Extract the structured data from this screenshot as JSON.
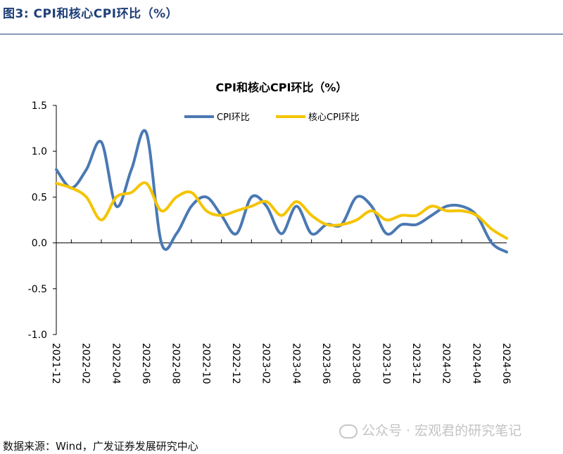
{
  "figure": {
    "label": "图3:  CPI和核心CPI环比（%）"
  },
  "footer": {
    "source": "数据来源：Wind，广发证券发展研究中心"
  },
  "watermark": {
    "text": "公众号 · 宏观君的研究笔记"
  },
  "chart_data": {
    "type": "line",
    "title": "CPI和核心CPI环比（%）",
    "xlabel": "",
    "ylabel": "",
    "ylim": [
      -1.0,
      1.5
    ],
    "yticks": [
      -1.0,
      -0.5,
      0.0,
      0.5,
      1.0,
      1.5
    ],
    "ytick_labels": [
      "-1.0",
      "-0.5",
      "0.0",
      "0.5",
      "1.0",
      "1.5"
    ],
    "x_tick_labels": [
      "2021-12",
      "2022-02",
      "2022-04",
      "2022-06",
      "2022-08",
      "2022-10",
      "2022-12",
      "2023-02",
      "2023-04",
      "2023-06",
      "2023-08",
      "2023-10",
      "2023-12",
      "2024-02",
      "2024-04",
      "2024-06"
    ],
    "categories": [
      "2021-12",
      "2022-01",
      "2022-02",
      "2022-03",
      "2022-04",
      "2022-05",
      "2022-06",
      "2022-07",
      "2022-08",
      "2022-09",
      "2022-10",
      "2022-11",
      "2022-12",
      "2023-01",
      "2023-02",
      "2023-03",
      "2023-04",
      "2023-05",
      "2023-06",
      "2023-07",
      "2023-08",
      "2023-09",
      "2023-10",
      "2023-11",
      "2023-12",
      "2024-01",
      "2024-02",
      "2024-03",
      "2024-04",
      "2024-05",
      "2024-06"
    ],
    "legend_position": "top-center",
    "series": [
      {
        "name": "CPI环比",
        "color": "#4a79b3",
        "values": [
          0.8,
          0.6,
          0.8,
          1.1,
          0.4,
          0.8,
          1.2,
          0.0,
          0.1,
          0.4,
          0.5,
          0.3,
          0.1,
          0.5,
          0.4,
          0.1,
          0.4,
          0.1,
          0.2,
          0.2,
          0.5,
          0.4,
          0.1,
          0.2,
          0.2,
          0.3,
          0.4,
          0.4,
          0.3,
          0.0,
          -0.1
        ]
      },
      {
        "name": "核心CPI环比",
        "color": "#f5c400",
        "values": [
          0.65,
          0.6,
          0.5,
          0.25,
          0.5,
          0.55,
          0.65,
          0.35,
          0.5,
          0.55,
          0.35,
          0.3,
          0.35,
          0.4,
          0.45,
          0.3,
          0.45,
          0.3,
          0.2,
          0.2,
          0.25,
          0.35,
          0.25,
          0.3,
          0.3,
          0.4,
          0.35,
          0.35,
          0.3,
          0.15,
          0.05
        ]
      }
    ]
  }
}
